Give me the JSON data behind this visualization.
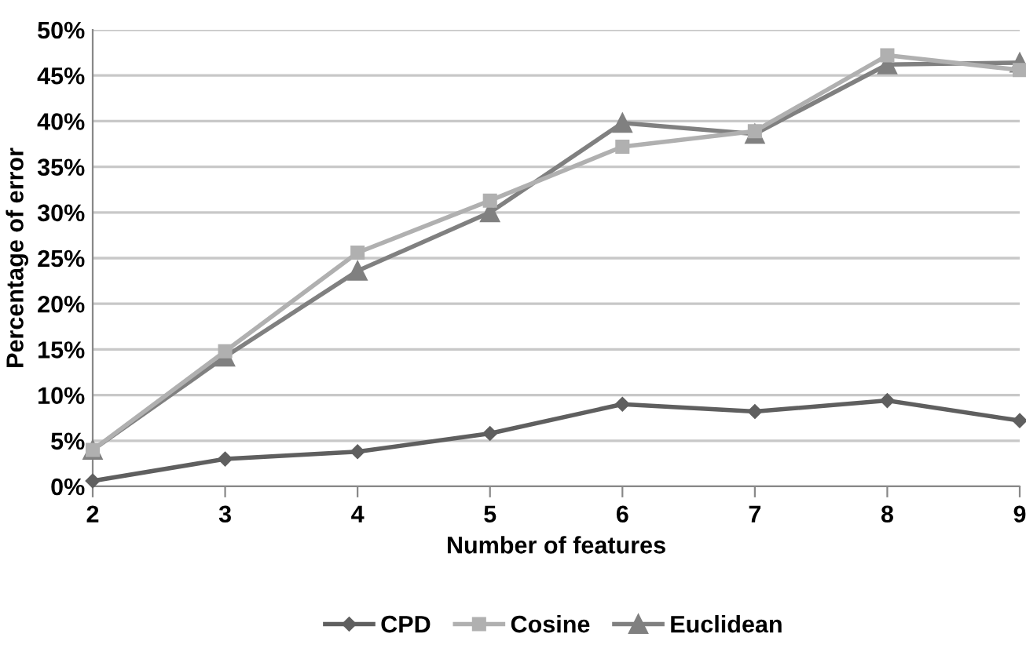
{
  "chart_data": {
    "type": "line",
    "xlabel": "Number of features",
    "ylabel": "Percentage of error",
    "x": [
      2,
      3,
      4,
      5,
      6,
      7,
      8,
      9
    ],
    "series": [
      {
        "name": "CPD",
        "color": "#5f5f5f",
        "marker": "diamond",
        "values": [
          0.6,
          3.0,
          3.8,
          5.8,
          9.0,
          8.2,
          9.4,
          7.2
        ]
      },
      {
        "name": "Cosine",
        "color": "#b0b0b0",
        "marker": "square",
        "values": [
          4.0,
          14.8,
          25.6,
          31.3,
          37.2,
          38.9,
          47.2,
          45.6
        ]
      },
      {
        "name": "Euclidean",
        "color": "#808080",
        "marker": "triangle",
        "values": [
          4.0,
          14.2,
          23.6,
          30.0,
          39.8,
          38.6,
          46.2,
          46.4
        ]
      }
    ],
    "xlim": [
      2,
      9
    ],
    "xticks": [
      2,
      3,
      4,
      5,
      6,
      7,
      8,
      9
    ],
    "ylim": [
      0,
      50
    ],
    "yticks": [
      {
        "value": 0,
        "label": "0%"
      },
      {
        "value": 5,
        "label": "5%"
      },
      {
        "value": 10,
        "label": "10%"
      },
      {
        "value": 15,
        "label": "15%"
      },
      {
        "value": 20,
        "label": "20%"
      },
      {
        "value": 25,
        "label": "25%"
      },
      {
        "value": 30,
        "label": "30%"
      },
      {
        "value": 35,
        "label": "35%"
      },
      {
        "value": 40,
        "label": "40%"
      },
      {
        "value": 45,
        "label": "45%"
      },
      {
        "value": 50,
        "label": "50%"
      }
    ],
    "grid": "y",
    "legend": "bottom",
    "line_style": "solid"
  }
}
